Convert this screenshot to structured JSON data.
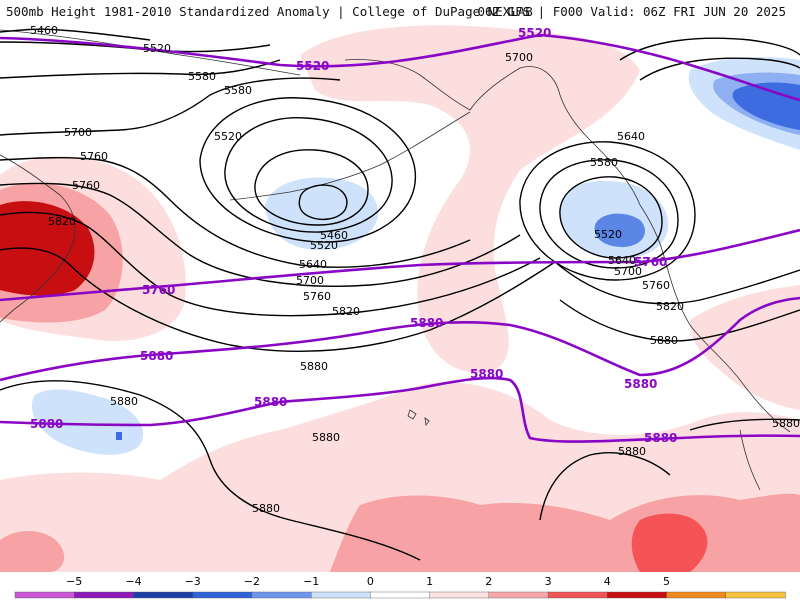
{
  "header": {
    "left_title": "500mb Height 1981-2010 Standardized Anomaly | College of DuPage NEXLAB",
    "right_title": "06Z GFS | F000 Valid: 06Z FRI JUN 20 2025"
  },
  "map": {
    "black_contour_labels": [
      "5460",
      "5520",
      "5580",
      "5640",
      "5700",
      "5760",
      "5820",
      "5580",
      "5520",
      "5460",
      "5640",
      "5700",
      "5760",
      "5820",
      "5880",
      "5700",
      "5640",
      "5580",
      "5520",
      "5640",
      "5700",
      "5760",
      "5820",
      "5880",
      "5880",
      "5880",
      "5880",
      "5880",
      "5880",
      "5880"
    ],
    "purple_contour_labels": [
      "5520",
      "5520",
      "5760",
      "5760",
      "5880",
      "5880",
      "5880",
      "5880",
      "5880",
      "5880",
      "5880"
    ]
  },
  "colorbar": {
    "ticks": [
      "−5",
      "−4",
      "−3",
      "−2",
      "−1",
      "0",
      "1",
      "2",
      "3",
      "4",
      "5"
    ],
    "colors": [
      "#c957d6",
      "#8d1ab9",
      "#1d3fa8",
      "#2f63d8",
      "#6f96ee",
      "#cfe2fb",
      "#ffffff",
      "#fce2e2",
      "#f8a7a9",
      "#f45456",
      "#c70f12",
      "#f08a1a",
      "#f7c23c"
    ]
  }
}
